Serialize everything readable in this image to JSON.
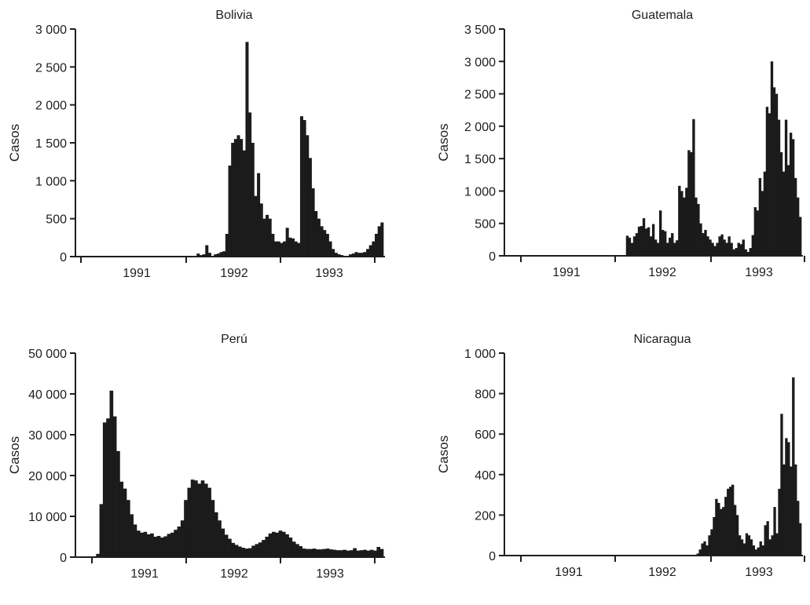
{
  "chart_data": [
    {
      "type": "bar",
      "title": "Bolivia",
      "ylabel": "Casos",
      "ylim": [
        0,
        3000
      ],
      "yticks": [
        0,
        500,
        1000,
        1500,
        2000,
        2500,
        3000
      ],
      "ytick_labels": [
        "0",
        "500",
        "1 000",
        "1 500",
        "2 000",
        "2 500",
        "3 000"
      ],
      "xlim": [
        1990.5,
        1994.0
      ],
      "xtick_labels": [
        "1991",
        "1992",
        "1993"
      ],
      "period": "semanal",
      "x_start": 1991.0,
      "values": [
        0,
        0,
        0,
        0,
        0,
        0,
        0,
        0,
        0,
        0,
        0,
        0,
        0,
        0,
        0,
        0,
        0,
        0,
        0,
        0,
        0,
        0,
        0,
        0,
        0,
        0,
        0,
        0,
        0,
        0,
        0,
        0,
        0,
        0,
        0,
        0,
        0,
        0,
        0,
        0,
        40,
        20,
        30,
        150,
        50,
        10,
        30,
        40,
        60,
        70,
        300,
        1200,
        1500,
        1550,
        1600,
        1550,
        1400,
        2830,
        1900,
        1500,
        800,
        1100,
        700,
        500,
        550,
        500,
        300,
        200,
        200,
        180,
        200,
        380,
        250,
        240,
        200,
        180,
        1850,
        1800,
        1600,
        1300,
        900,
        600,
        500,
        400,
        350,
        300,
        200,
        100,
        50,
        30,
        20,
        10,
        10,
        30,
        40,
        60,
        50,
        50,
        60,
        100,
        150,
        200,
        300,
        400,
        450
      ]
    },
    {
      "type": "bar",
      "title": "Guatemala",
      "ylabel": "Casos",
      "ylim": [
        0,
        3500
      ],
      "yticks": [
        0,
        500,
        1000,
        1500,
        2000,
        2500,
        3000,
        3500
      ],
      "ytick_labels": [
        "0",
        "500",
        "1 000",
        "1 500",
        "2 000",
        "2 500",
        "3 000",
        "3 500"
      ],
      "xlim": [
        1990.5,
        1994.0
      ],
      "xtick_labels": [
        "1991",
        "1992",
        "1993"
      ],
      "period": "semanal",
      "x_start": 1990.5,
      "values": [
        0,
        0,
        0,
        0,
        0,
        0,
        0,
        0,
        0,
        0,
        0,
        0,
        0,
        0,
        0,
        0,
        0,
        0,
        0,
        0,
        0,
        0,
        0,
        0,
        0,
        0,
        0,
        0,
        0,
        0,
        0,
        0,
        0,
        0,
        0,
        0,
        0,
        0,
        0,
        0,
        0,
        0,
        0,
        0,
        310,
        280,
        200,
        300,
        350,
        450,
        460,
        580,
        420,
        440,
        300,
        490,
        250,
        200,
        700,
        400,
        380,
        200,
        280,
        350,
        200,
        240,
        1080,
        1000,
        900,
        1050,
        1630,
        1600,
        2110,
        900,
        800,
        500,
        350,
        400,
        300,
        250,
        200,
        150,
        200,
        300,
        330,
        250,
        200,
        300,
        200,
        100,
        120,
        200,
        180,
        250,
        100,
        60,
        120,
        320,
        750,
        700,
        1200,
        1000,
        1300,
        2300,
        2200,
        3000,
        2600,
        2500,
        2100,
        1600,
        1300,
        2100,
        1400,
        1900,
        1800,
        1200,
        900,
        600
      ]
    },
    {
      "type": "bar",
      "title": "Perú",
      "ylabel": "Casos",
      "ylim": [
        0,
        50000
      ],
      "yticks": [
        0,
        10000,
        20000,
        30000,
        40000,
        50000
      ],
      "ytick_labels": [
        "0",
        "10 000",
        "20 000",
        "30 000",
        "40 000",
        "50 000"
      ],
      "xlim": [
        1990.5,
        1994.0
      ],
      "xtick_labels": [
        "1991",
        "1992",
        "1993"
      ],
      "period": "semanal",
      "x_start": 1990.5,
      "values": [
        0,
        800,
        13000,
        33000,
        34000,
        40800,
        34500,
        26000,
        18500,
        16800,
        14000,
        10500,
        8000,
        6500,
        6000,
        6200,
        5600,
        5800,
        5000,
        5200,
        4800,
        5100,
        5700,
        6000,
        6700,
        7500,
        9000,
        14000,
        17000,
        19000,
        18800,
        18000,
        18800,
        18000,
        17000,
        14000,
        11000,
        9000,
        7000,
        5500,
        4500,
        3500,
        3000,
        2600,
        2300,
        2100,
        2200,
        2800,
        3200,
        3600,
        4200,
        5000,
        5800,
        6200,
        6000,
        6500,
        6200,
        5600,
        4800,
        3800,
        3200,
        2700,
        2100,
        2000,
        2000,
        2100,
        1900,
        1900,
        2000,
        2100,
        1900,
        1800,
        1700,
        1700,
        1800,
        1600,
        1700,
        2200,
        1600,
        1700,
        1800,
        1600,
        1800,
        1600,
        2500,
        2000
      ]
    },
    {
      "type": "bar",
      "title": "Nicaragua",
      "ylabel": "Casos",
      "ylim": [
        0,
        1000
      ],
      "yticks": [
        0,
        200,
        400,
        600,
        800,
        1000
      ],
      "ytick_labels": [
        "0",
        "200",
        "400",
        "600",
        "800",
        "1 000"
      ],
      "xlim": [
        1990.5,
        1994.0
      ],
      "xtick_labels": [
        "1991",
        "1992",
        "1993"
      ],
      "period": "semanal",
      "x_start": 1990.5,
      "values": [
        0,
        0,
        0,
        0,
        0,
        0,
        0,
        0,
        0,
        0,
        0,
        0,
        0,
        0,
        0,
        0,
        0,
        0,
        0,
        0,
        0,
        0,
        0,
        0,
        0,
        0,
        0,
        0,
        0,
        0,
        0,
        0,
        0,
        0,
        0,
        0,
        0,
        0,
        0,
        0,
        0,
        0,
        0,
        0,
        0,
        0,
        0,
        0,
        0,
        0,
        0,
        0,
        0,
        0,
        0,
        0,
        0,
        0,
        0,
        0,
        0,
        0,
        0,
        0,
        0,
        0,
        0,
        0,
        0,
        0,
        0,
        0,
        0,
        0,
        0,
        10,
        30,
        60,
        70,
        50,
        100,
        130,
        190,
        280,
        260,
        230,
        240,
        290,
        330,
        340,
        350,
        250,
        200,
        100,
        80,
        60,
        110,
        100,
        80,
        50,
        30,
        40,
        70,
        50,
        150,
        170,
        80,
        100,
        240,
        110,
        330,
        700,
        450,
        580,
        560,
        440,
        880,
        450,
        270,
        160
      ]
    }
  ]
}
